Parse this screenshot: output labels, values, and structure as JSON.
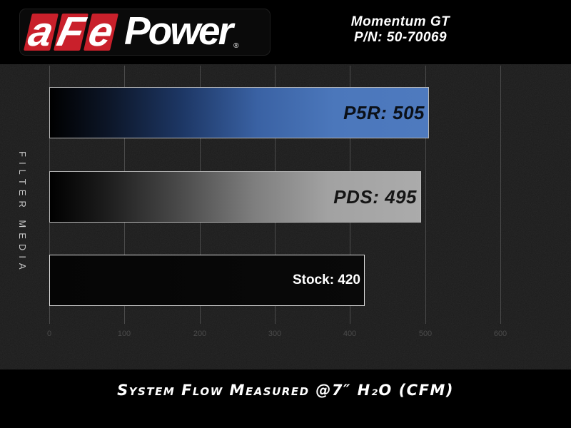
{
  "header": {
    "logo": {
      "tiles": [
        "a",
        "F",
        "e"
      ],
      "wordmark": "Power",
      "registered_mark": "®",
      "tile_color": "#c9202b"
    },
    "product_name": "Momentum GT",
    "part_number": "P/N: 50-70069"
  },
  "chart_data": {
    "type": "bar",
    "orientation": "horizontal",
    "title": "System Flow Measured @7″ H₂O (CFM)",
    "category_axis_label": "FILTER MEDIA",
    "categories": [
      "P5R",
      "PDS",
      "Stock"
    ],
    "values": [
      505,
      495,
      420
    ],
    "value_axis": {
      "min": 0,
      "max": 600,
      "ticks": [
        "0",
        "100",
        "200",
        "300",
        "400",
        "500",
        "600"
      ],
      "gridlines": "vertical"
    },
    "legend": "none",
    "bars": [
      {
        "category": "P5R",
        "value": 505,
        "label": "P5R: 505",
        "style": "techno",
        "label_color": "#0b1018",
        "border_color": "#b7b7b7",
        "gradient": [
          "#000000 0%",
          "#0c1526 15%",
          "#1d3765 35%",
          "#3a62a4 55%",
          "#4b77bb 75%",
          "#4e7abf 100%"
        ]
      },
      {
        "category": "PDS",
        "value": 495,
        "label": "PDS: 495",
        "style": "techno",
        "label_color": "#151515",
        "border_color": "#b7b7b7",
        "gradient": [
          "#000000 0%",
          "#1c1c1c 15%",
          "#4a4a4a 35%",
          "#7e7e7e 55%",
          "#a2a2a2 75%",
          "#ababab 100%"
        ]
      },
      {
        "category": "Stock",
        "value": 420,
        "label": "Stock: 420",
        "style": "plain",
        "label_color": "#ffffff",
        "border_color": "#dcdcdc",
        "gradient": [
          "#050505 0%",
          "#090909 100%"
        ]
      }
    ]
  },
  "colors": {
    "page_background": "#000000",
    "chart_background": "#1b1b1b",
    "gridline": "#5e5e5e",
    "tick_label": "#4b4b4b",
    "brand_red": "#c9202b",
    "accent_blue": "#4b77bb",
    "accent_gray": "#ababab"
  }
}
